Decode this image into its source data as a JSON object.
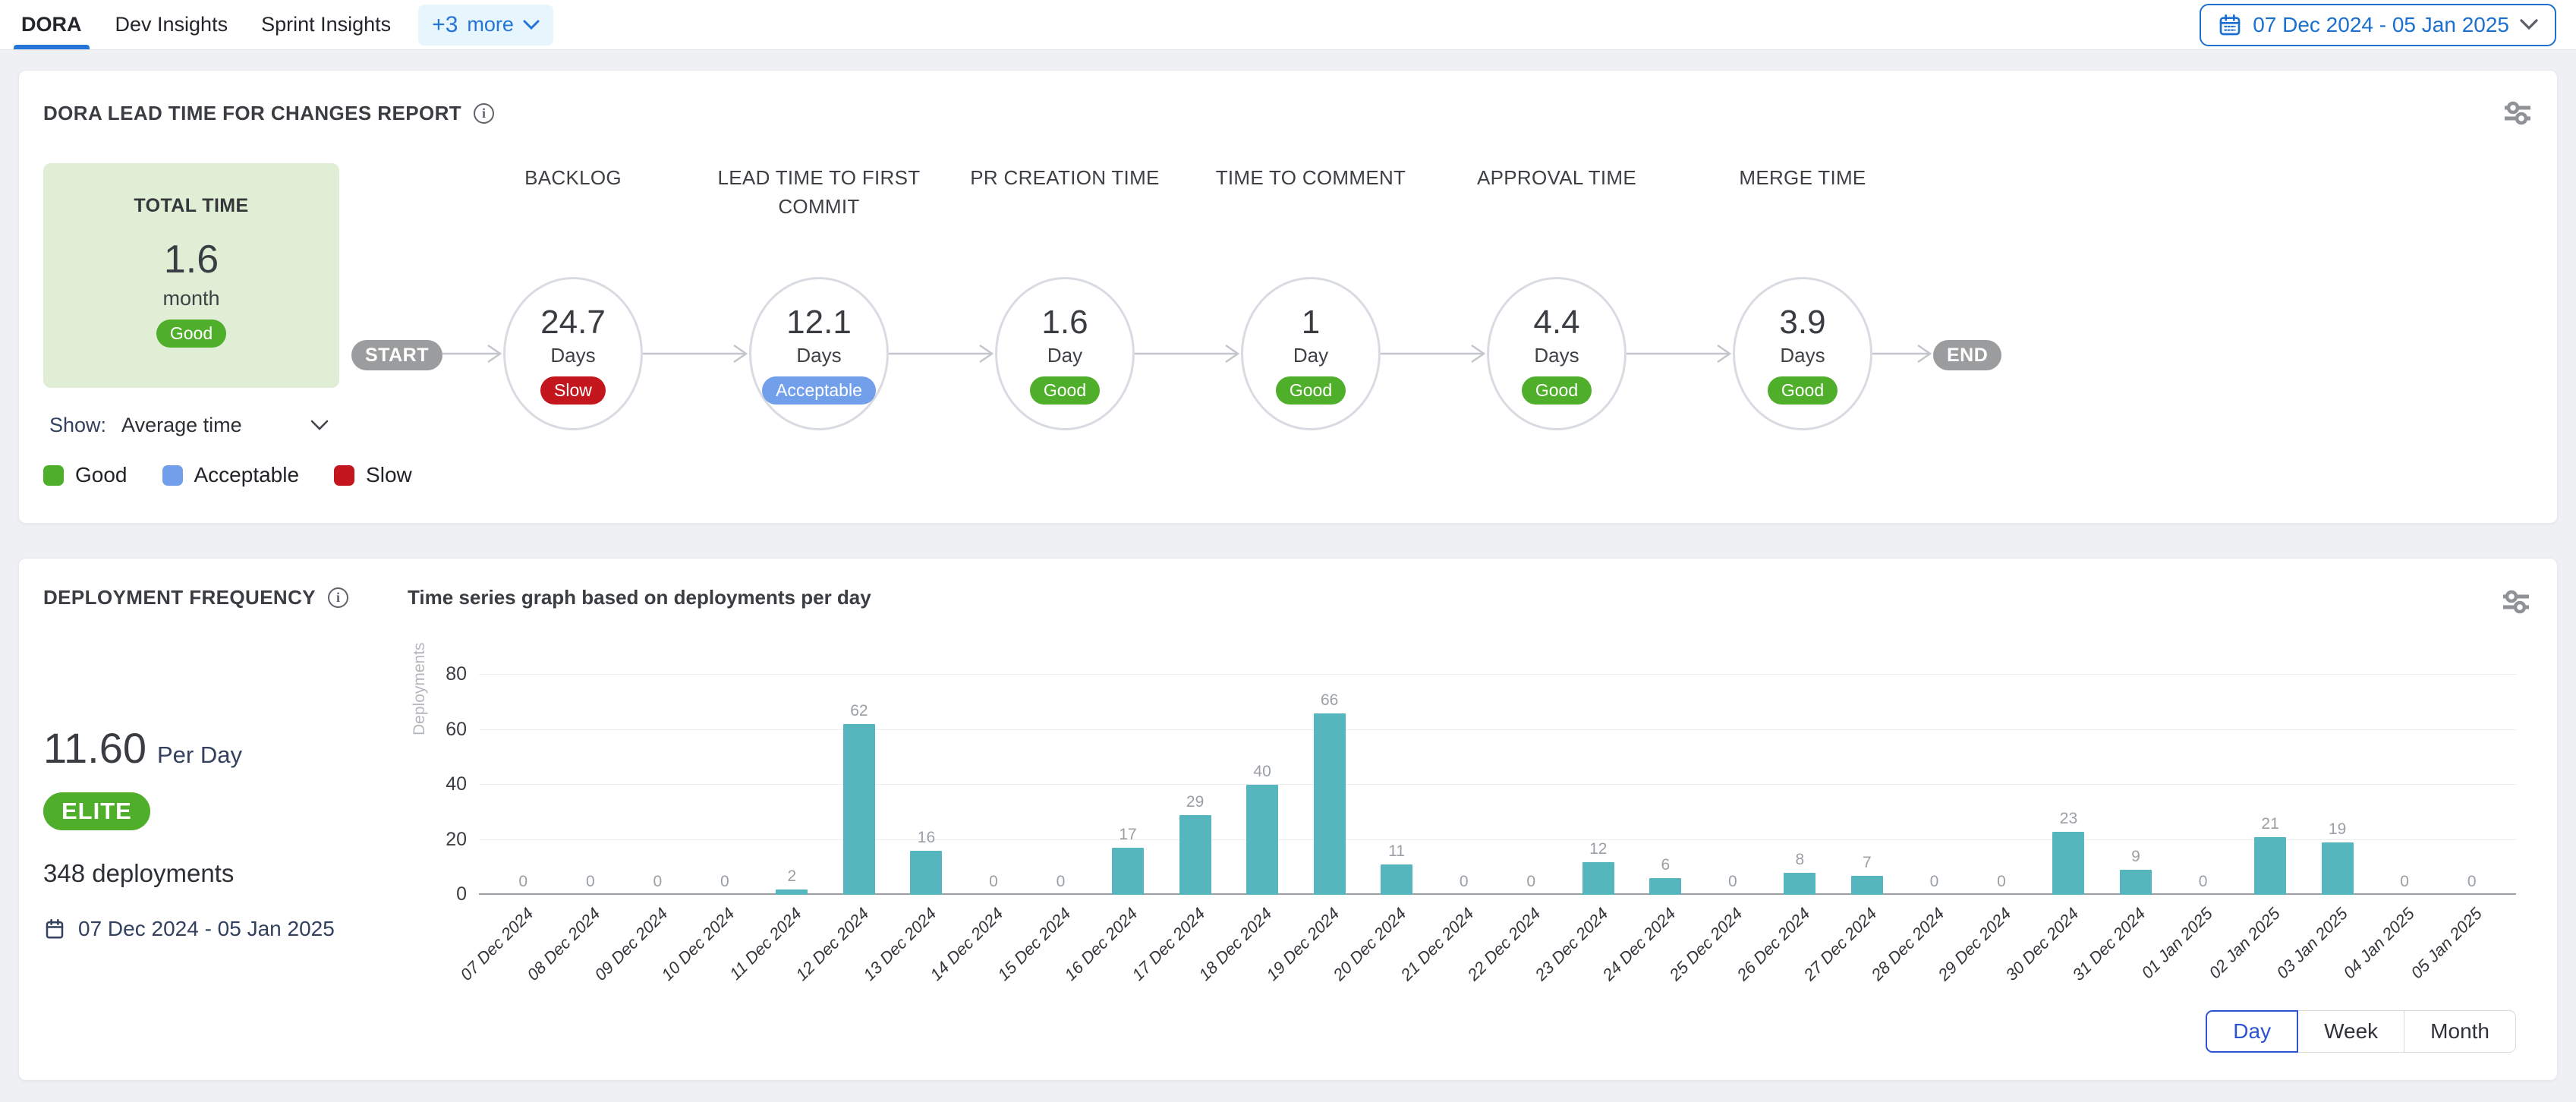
{
  "tabs": {
    "items": [
      {
        "label": "DORA",
        "active": true
      },
      {
        "label": "Dev Insights",
        "active": false
      },
      {
        "label": "Sprint Insights",
        "active": false
      }
    ],
    "more_count": "+3",
    "more_word": "more"
  },
  "date_picker": {
    "label": "07 Dec 2024 - 05 Jan 2025"
  },
  "lead_time_card": {
    "title": "DORA LEAD TIME FOR CHANGES REPORT",
    "total": {
      "title": "TOTAL TIME",
      "value": "1.6",
      "unit": "month",
      "status": "Good"
    },
    "start_label": "START",
    "end_label": "END",
    "show_label": "Show:",
    "show_value": "Average time",
    "stages": [
      {
        "label": "BACKLOG",
        "value": "24.7",
        "unit": "Days",
        "status": "Slow"
      },
      {
        "label": "LEAD TIME TO FIRST COMMIT",
        "value": "12.1",
        "unit": "Days",
        "status": "Acceptable"
      },
      {
        "label": "PR CREATION TIME",
        "value": "1.6",
        "unit": "Day",
        "status": "Good"
      },
      {
        "label": "TIME TO COMMENT",
        "value": "1",
        "unit": "Day",
        "status": "Good"
      },
      {
        "label": "APPROVAL TIME",
        "value": "4.4",
        "unit": "Days",
        "status": "Good"
      },
      {
        "label": "MERGE TIME",
        "value": "3.9",
        "unit": "Days",
        "status": "Good"
      }
    ],
    "status_colors": {
      "Good": "#4fae2a",
      "Acceptable": "#719fe9",
      "Slow": "#c4171d"
    },
    "legend": [
      {
        "label": "Good",
        "color": "#4fae2a"
      },
      {
        "label": "Acceptable",
        "color": "#719fe9"
      },
      {
        "label": "Slow",
        "color": "#c4171d"
      }
    ]
  },
  "deployment_card": {
    "title": "DEPLOYMENT FREQUENCY",
    "rate_value": "11.60",
    "rate_unit": "Per Day",
    "tier": "ELITE",
    "total_label": "348 deployments",
    "date_range": "07 Dec 2024 - 05 Jan 2025",
    "subtitle": "Time series graph based on deployments per day",
    "granularity": [
      {
        "label": "Day",
        "active": true
      },
      {
        "label": "Week",
        "active": false
      },
      {
        "label": "Month",
        "active": false
      }
    ]
  },
  "chart_data": {
    "type": "bar",
    "title": "Time series graph based on deployments per day",
    "xlabel": "",
    "ylabel": "Deployments",
    "ylim": [
      0,
      80
    ],
    "yticks": [
      0,
      20,
      40,
      60,
      80
    ],
    "grid": true,
    "legend_position": "none",
    "bar_color": "#55b6bd",
    "categories": [
      "07 Dec 2024",
      "08 Dec 2024",
      "09 Dec 2024",
      "10 Dec 2024",
      "11 Dec 2024",
      "12 Dec 2024",
      "13 Dec 2024",
      "14 Dec 2024",
      "15 Dec 2024",
      "16 Dec 2024",
      "17 Dec 2024",
      "18 Dec 2024",
      "19 Dec 2024",
      "20 Dec 2024",
      "21 Dec 2024",
      "22 Dec 2024",
      "23 Dec 2024",
      "24 Dec 2024",
      "25 Dec 2024",
      "26 Dec 2024",
      "27 Dec 2024",
      "28 Dec 2024",
      "29 Dec 2024",
      "30 Dec 2024",
      "31 Dec 2024",
      "01 Jan 2025",
      "02 Jan 2025",
      "03 Jan 2025",
      "04 Jan 2025",
      "05 Jan 2025"
    ],
    "values": [
      0,
      0,
      0,
      0,
      2,
      62,
      16,
      0,
      0,
      17,
      29,
      40,
      66,
      11,
      0,
      0,
      12,
      6,
      0,
      8,
      7,
      0,
      0,
      23,
      9,
      0,
      21,
      19,
      0,
      0
    ]
  },
  "colors": {
    "accent_blue": "#1b70cf",
    "active_tab_blue": "#2575d8",
    "day_button_blue": "#2d53d3",
    "good_green": "#4fae2a",
    "acceptable_blue": "#719fe9",
    "slow_red": "#c4171d",
    "elite_green": "#4fae2a",
    "total_card_bg": "#dfeed5",
    "bar_teal": "#55b6bd",
    "start_end_gray": "#9a9c9e"
  }
}
